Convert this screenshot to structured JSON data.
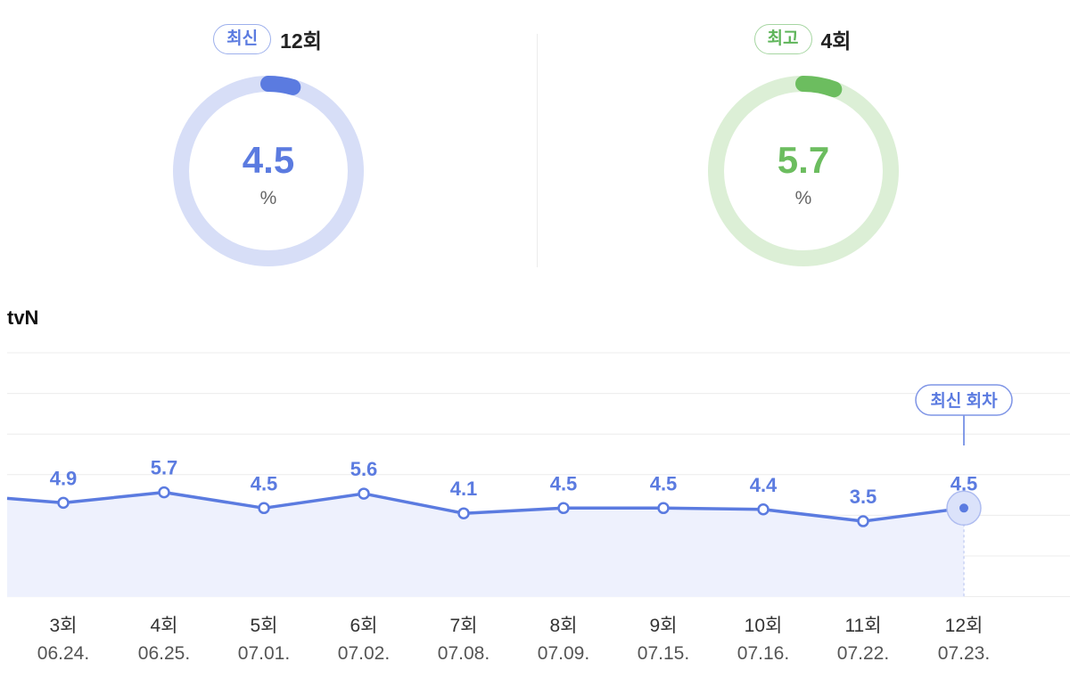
{
  "summary": {
    "latest": {
      "badge": "최신",
      "episode": "12회",
      "value": "4.5",
      "unit": "%",
      "fraction": 0.045,
      "color": "#5b7be0",
      "track": "#d7def7"
    },
    "best": {
      "badge": "최고",
      "episode": "4회",
      "value": "5.7",
      "unit": "%",
      "fraction": 0.057,
      "color": "#6cbd5f",
      "track": "#dcefd6"
    }
  },
  "channel": "tvN",
  "chart_data": {
    "type": "line",
    "categories": [
      "3회",
      "4회",
      "5회",
      "6회",
      "7회",
      "8회",
      "9회",
      "10회",
      "11회",
      "12회"
    ],
    "dates": [
      "06.24.",
      "06.25.",
      "07.01.",
      "07.02.",
      "07.08.",
      "07.09.",
      "07.15.",
      "07.16.",
      "07.22.",
      "07.23."
    ],
    "values": [
      4.9,
      5.7,
      4.5,
      5.6,
      4.1,
      4.5,
      4.5,
      4.4,
      3.5,
      4.5
    ],
    "value_labels": [
      "4.9",
      "5.7",
      "4.5",
      "5.6",
      "4.1",
      "4.5",
      "4.5",
      "4.4",
      "3.5",
      "4.5"
    ],
    "highlight": {
      "index": 9,
      "label": "최신 회차"
    },
    "line_color": "#5b7be0",
    "fill_color": "#eef1fd",
    "grid": true
  }
}
